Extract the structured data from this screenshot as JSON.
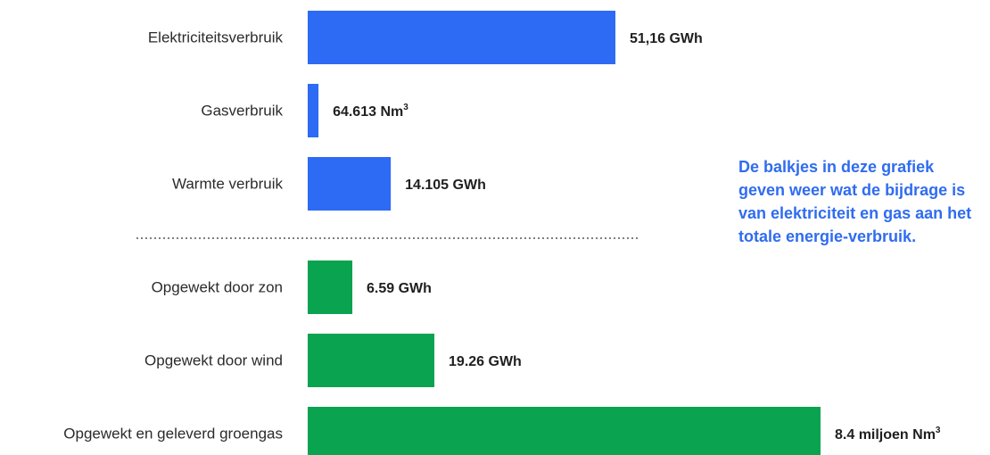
{
  "chart_data": {
    "type": "bar",
    "orientation": "horizontal",
    "grid": false,
    "colors": {
      "consumption": "#2e6bf5",
      "generation": "#0aa34f",
      "divider": "#555555"
    },
    "categories": [
      "Elektriciteitsverbruik",
      "Gasverbruik",
      "Warmte verbruik",
      "Opgewekt door zon",
      "Opgewekt door wind",
      "Opgewekt en geleverd groengas"
    ],
    "bars": [
      {
        "group": "consumption",
        "label": "Elektriciteitsverbruik",
        "value_text": "51,16 GWh",
        "unit_sup": "",
        "rel_length": 0.6
      },
      {
        "group": "consumption",
        "label": "Gasverbruik",
        "value_text": "64.613 Nm",
        "unit_sup": "3",
        "rel_length": 0.021
      },
      {
        "group": "consumption",
        "label": "Warmte verbruik",
        "value_text": "14.105 GWh",
        "unit_sup": "",
        "rel_length": 0.162
      },
      {
        "group": "generation",
        "label": "Opgewekt door zon",
        "value_text": "6.59 GWh",
        "unit_sup": "",
        "rel_length": 0.087
      },
      {
        "group": "generation",
        "label": "Opgewekt door wind",
        "value_text": "19.26 GWh",
        "unit_sup": "",
        "rel_length": 0.247
      },
      {
        "group": "generation",
        "label": "Opgewekt en geleverd groengas",
        "value_text": "8.4 miljoen Nm",
        "unit_sup": "3",
        "rel_length": 1.0
      }
    ]
  },
  "note": {
    "text": "De balkjes in deze grafiek geven weer wat de bijdrage is van elektriciteit en gas aan het totale energie-verbruik."
  }
}
